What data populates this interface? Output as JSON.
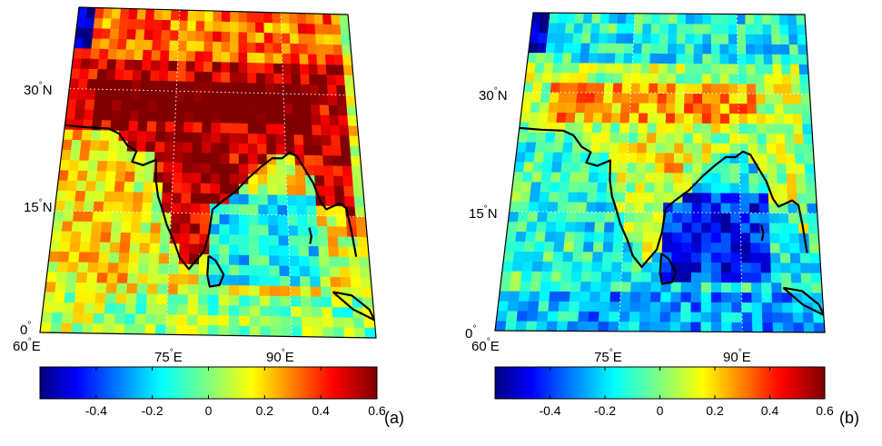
{
  "panels": [
    {
      "id": "a",
      "label": "(a)",
      "lat_labels": [
        {
          "deg": "30",
          "hemi": "N"
        },
        {
          "deg": "15",
          "hemi": "N"
        },
        {
          "deg": "0",
          "hemi": ""
        }
      ],
      "lon_labels": [
        {
          "deg": "60",
          "hemi": "E"
        },
        {
          "deg": "75",
          "hemi": "E"
        },
        {
          "deg": "90",
          "hemi": "E"
        }
      ],
      "field_bias": 0.3,
      "colorbar_ticks": [
        "-0.4",
        "-0.2",
        "0",
        "0.2",
        "0.4",
        "0.6"
      ]
    },
    {
      "id": "b",
      "label": "(b)",
      "lat_labels": [
        {
          "deg": "30",
          "hemi": "N"
        },
        {
          "deg": "15",
          "hemi": "N"
        },
        {
          "deg": "0",
          "hemi": ""
        }
      ],
      "lon_labels": [
        {
          "deg": "60",
          "hemi": "E"
        },
        {
          "deg": "75",
          "hemi": "E"
        },
        {
          "deg": "90",
          "hemi": "E"
        }
      ],
      "field_bias": -0.15,
      "colorbar_ticks": [
        "-0.4",
        "-0.2",
        "0",
        "0.2",
        "0.4",
        "0.6"
      ]
    }
  ],
  "colorbar": {
    "min": -0.6,
    "max": 0.6,
    "colormap": "jet"
  },
  "map_extent": {
    "lon": [
      60,
      100
    ],
    "lat": [
      0,
      40
    ]
  },
  "coastline_color": "#000000",
  "gridline_color": "#ffffff"
}
